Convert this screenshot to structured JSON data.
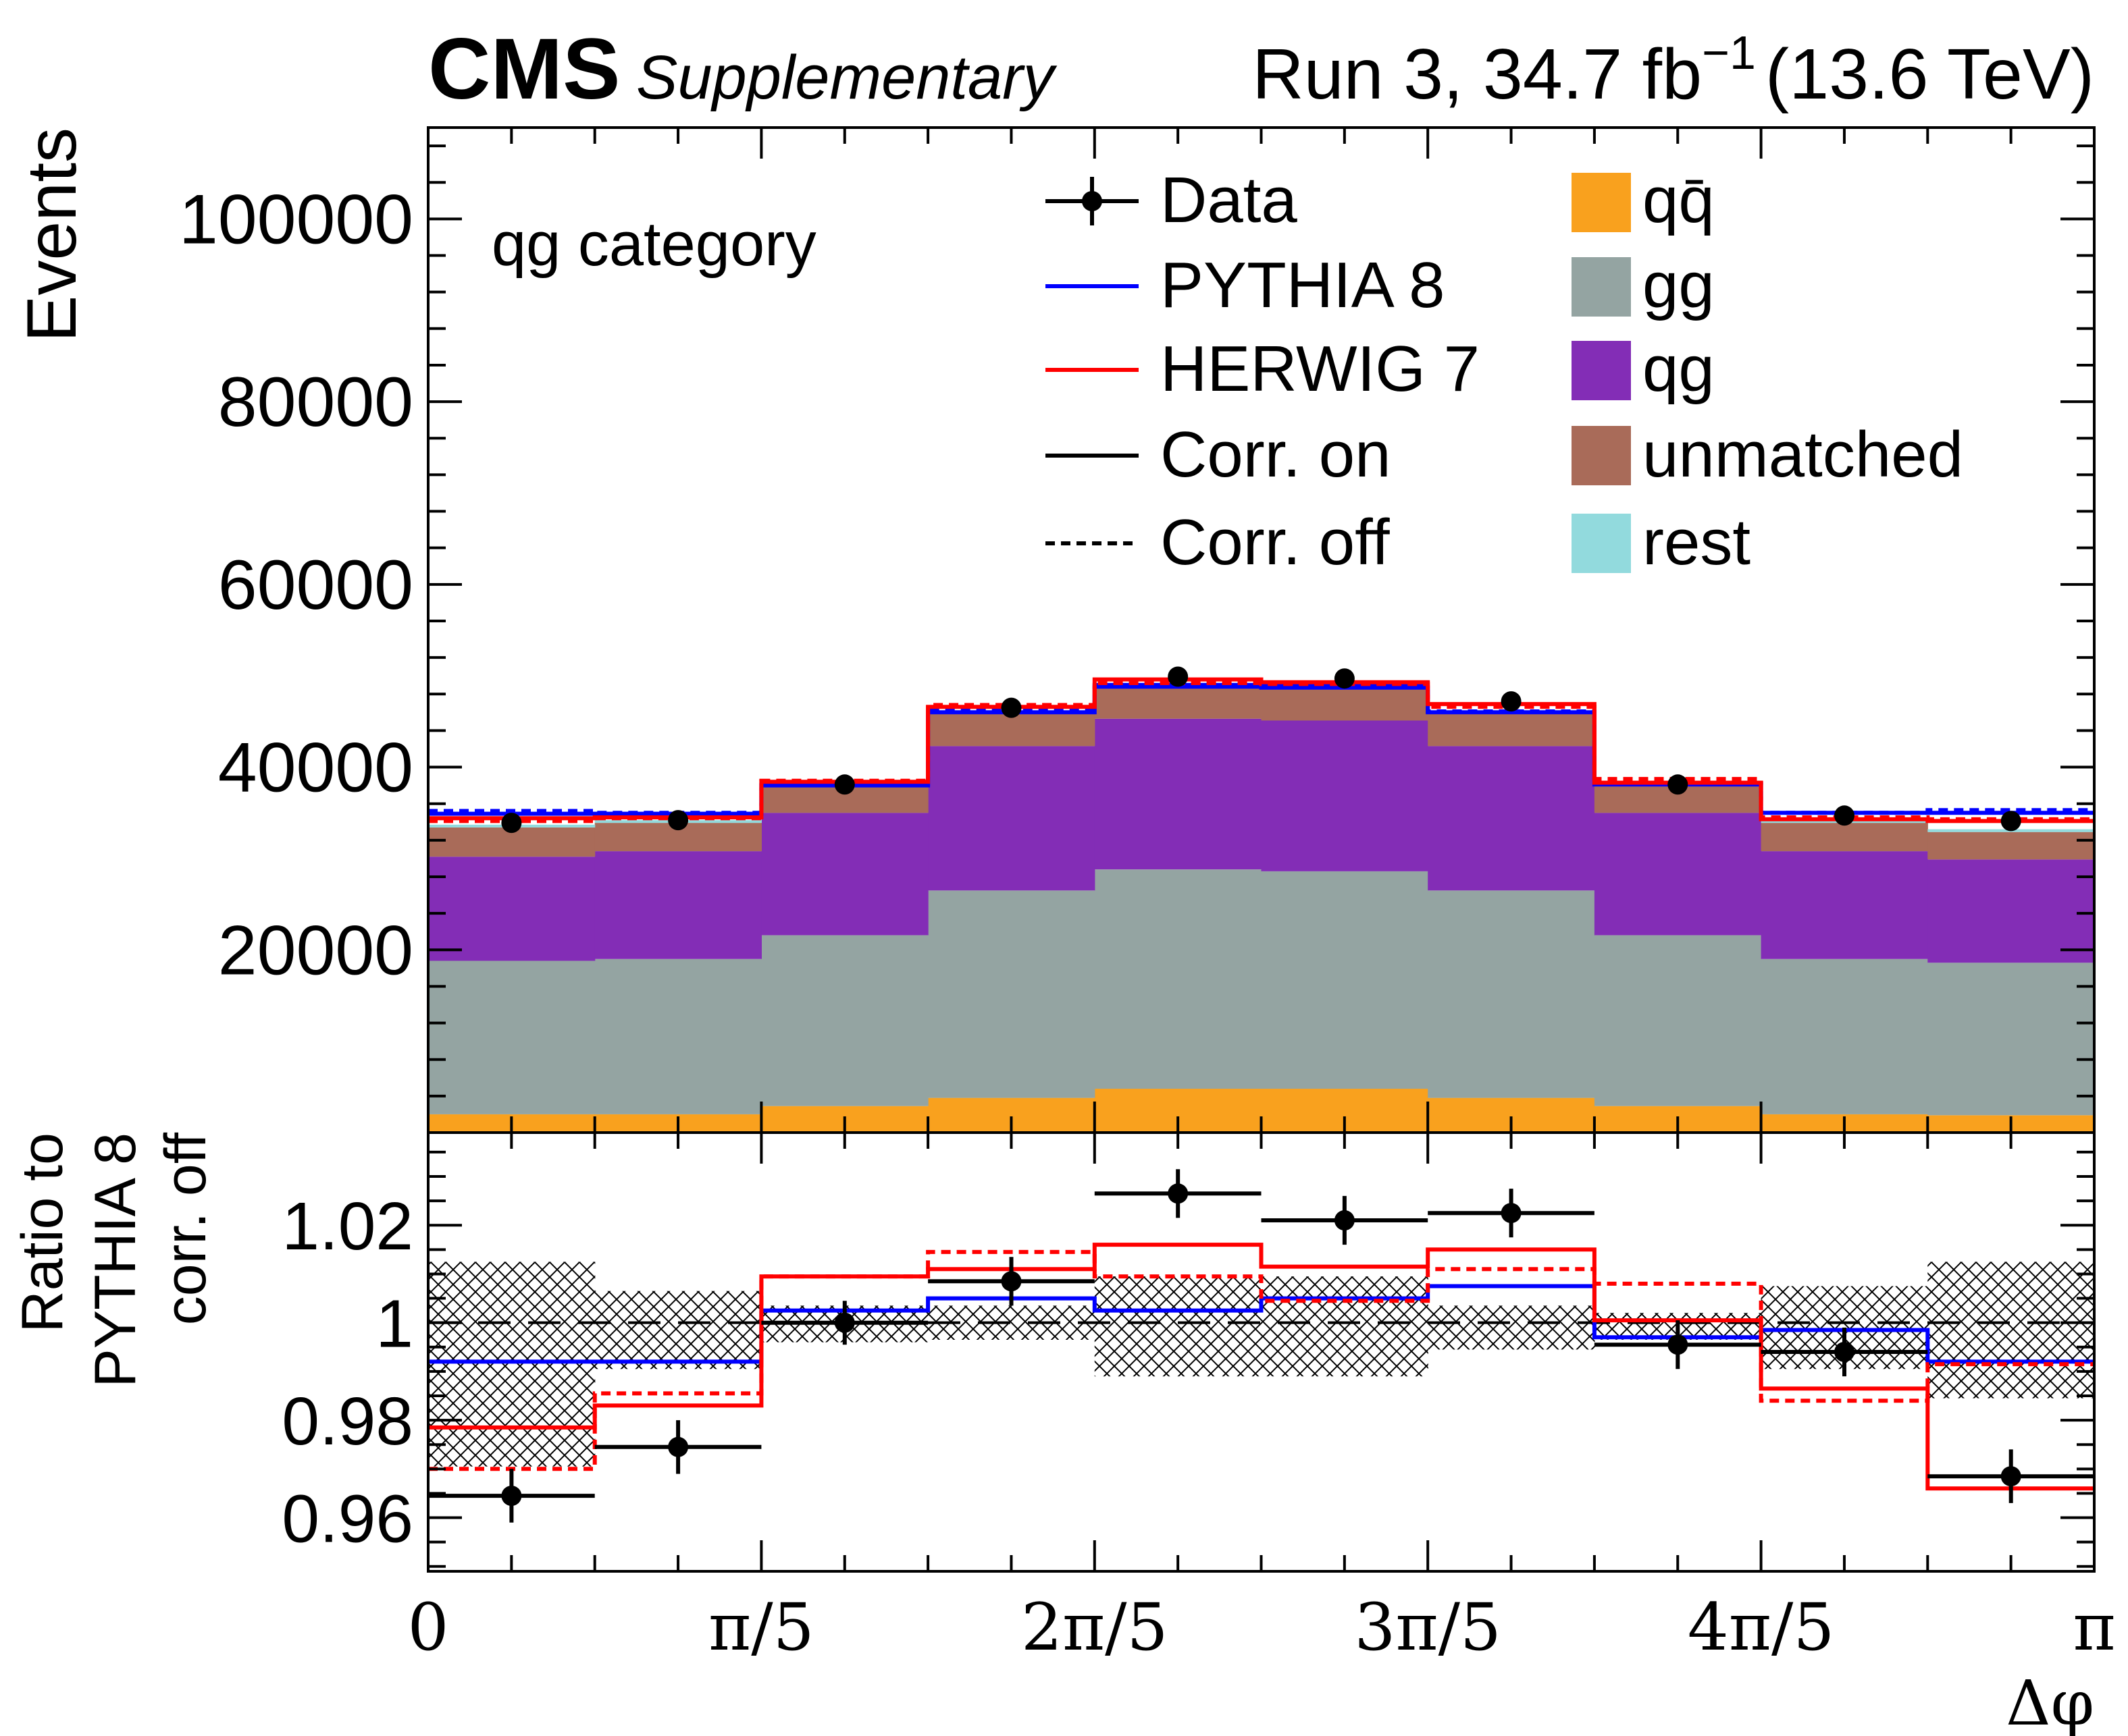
{
  "chart_data": {
    "type": "bar",
    "header": {
      "experiment": "CMS",
      "status": "Supplementary",
      "lumi_prefix": "Run 3, 34.7 fb",
      "lumi_exp": "−1",
      "energy": "(13.6 TeV)"
    },
    "category_label": "qg category",
    "xlabel": "Δφ",
    "xlim": [
      0,
      3.14159265
    ],
    "xticks": [
      {
        "value": 0,
        "label": "0"
      },
      {
        "value": 0.62831853,
        "label": "π/5"
      },
      {
        "value": 1.25663706,
        "label": "2π/5"
      },
      {
        "value": 1.88495559,
        "label": "3π/5"
      },
      {
        "value": 2.51327412,
        "label": "4π/5"
      },
      {
        "value": 3.14159265,
        "label": "π"
      }
    ],
    "bin_edges": [
      0,
      0.31415927,
      0.62831853,
      0.9424778,
      1.25663706,
      1.57079633,
      1.88495559,
      2.19911486,
      2.51327412,
      2.82743339,
      3.14159265
    ],
    "top": {
      "ylabel": "Events",
      "ylim": [
        0,
        110000
      ],
      "yticks": [
        {
          "value": 20000,
          "label": "20000"
        },
        {
          "value": 40000,
          "label": "40000"
        },
        {
          "value": 60000,
          "label": "60000"
        },
        {
          "value": 80000,
          "label": "80000"
        },
        {
          "value": 100000,
          "label": "100000"
        }
      ],
      "stack": [
        {
          "name": "qq̄",
          "color": "#f9a11e",
          "values": [
            2000,
            2000,
            2900,
            3800,
            4800,
            4800,
            3800,
            2900,
            2000,
            1900
          ]
        },
        {
          "name": "gg",
          "color": "#94a4a2",
          "values": [
            16800,
            17000,
            18700,
            22700,
            24000,
            23800,
            22700,
            18700,
            17000,
            16700
          ]
        },
        {
          "name": "qg",
          "color": "#832db6",
          "values": [
            11400,
            11800,
            13400,
            15800,
            16500,
            16500,
            15800,
            13400,
            11800,
            11300
          ]
        },
        {
          "name": "unmatched",
          "color": "#a96b59",
          "values": [
            3200,
            3100,
            3100,
            3600,
            3400,
            3600,
            3600,
            3100,
            3100,
            3000
          ]
        },
        {
          "name": "rest",
          "color": "#92dadd",
          "values": [
            300,
            300,
            300,
            300,
            300,
            300,
            300,
            300,
            300,
            300
          ]
        }
      ],
      "curves": [
        {
          "name": "PYTHIA 8 corr. off",
          "color": "#0000ff",
          "dashed": true,
          "values": [
            35200,
            35000,
            38100,
            46200,
            49000,
            48900,
            46100,
            38200,
            35000,
            35300
          ]
        },
        {
          "name": "PYTHIA 8 corr. on",
          "color": "#0000ff",
          "dashed": false,
          "values": [
            34900,
            34900,
            38000,
            46000,
            48800,
            48700,
            46000,
            38100,
            35000,
            35000
          ]
        },
        {
          "name": "HERWIG 7 corr. off",
          "color": "#ff0000",
          "dashed": true,
          "values": [
            34100,
            34400,
            38500,
            46800,
            49200,
            49100,
            46600,
            38700,
            34500,
            34300
          ]
        },
        {
          "name": "HERWIG 7 corr. on",
          "color": "#ff0000",
          "dashed": false,
          "values": [
            34400,
            34500,
            38400,
            46600,
            49600,
            49300,
            46900,
            38300,
            34300,
            34100
          ]
        }
      ],
      "data": [
        33900,
        34200,
        38100,
        46500,
        49900,
        49700,
        47200,
        38100,
        34700,
        34100
      ]
    },
    "ratio": {
      "ylabel_lines": [
        "Ratio to",
        "PYTHIA 8",
        "corr. off"
      ],
      "ylim": [
        0.949,
        1.039
      ],
      "yticks": [
        {
          "value": 0.96,
          "label": "0.96"
        },
        {
          "value": 0.98,
          "label": "0.98"
        },
        {
          "value": 1.0,
          "label": "1"
        },
        {
          "value": 1.02,
          "label": "1.02"
        }
      ],
      "band": {
        "down": [
          0.9705,
          0.9905,
          0.996,
          0.9965,
          0.989,
          0.989,
          0.9945,
          0.9965,
          0.9905,
          0.9845
        ],
        "up": [
          1.0125,
          1.0065,
          1.0035,
          1.0035,
          1.0095,
          1.0095,
          1.0035,
          1.002,
          1.0075,
          1.0125
        ]
      },
      "curves": [
        {
          "name": "PYTHIA 8 corr. on",
          "color": "#0000ff",
          "dashed": false,
          "values": [
            0.992,
            0.992,
            1.0025,
            1.005,
            1.0025,
            1.005,
            1.0075,
            0.997,
            0.9985,
            0.992
          ]
        },
        {
          "name": "HERWIG 7 corr. off",
          "color": "#ff0000",
          "dashed": true,
          "values": [
            0.97,
            0.9855,
            1.0095,
            1.0145,
            1.0095,
            1.0045,
            1.011,
            1.008,
            0.984,
            0.9915
          ]
        },
        {
          "name": "HERWIG 7 corr. on",
          "color": "#ff0000",
          "dashed": false,
          "values": [
            0.9785,
            0.983,
            1.0095,
            1.011,
            1.016,
            1.0115,
            1.015,
            1.0005,
            0.9865,
            0.966
          ]
        }
      ],
      "data": {
        "values": [
          0.9645,
          0.9745,
          1.0,
          1.0085,
          1.0265,
          1.021,
          1.0225,
          0.9955,
          0.994,
          0.9685
        ],
        "err": [
          0.0055,
          0.0055,
          0.0045,
          0.005,
          0.005,
          0.005,
          0.005,
          0.005,
          0.005,
          0.0055
        ]
      }
    },
    "legend": {
      "position": "top-right",
      "left_column": [
        {
          "label": "Data",
          "kind": "marker"
        },
        {
          "label": "PYTHIA 8",
          "kind": "line",
          "color": "#0000ff"
        },
        {
          "label": "HERWIG 7",
          "kind": "line",
          "color": "#ff0000"
        },
        {
          "label": "Corr. on",
          "kind": "line",
          "color": "#000000"
        },
        {
          "label": "Corr. off",
          "kind": "dashed",
          "color": "#000000"
        }
      ],
      "right_column": [
        {
          "label": "qq̄",
          "color": "#f9a11e"
        },
        {
          "label": "gg",
          "color": "#94a4a2"
        },
        {
          "label": "qg",
          "color": "#832db6"
        },
        {
          "label": "unmatched",
          "color": "#a96b59"
        },
        {
          "label": "rest",
          "color": "#92dadd"
        }
      ]
    }
  }
}
